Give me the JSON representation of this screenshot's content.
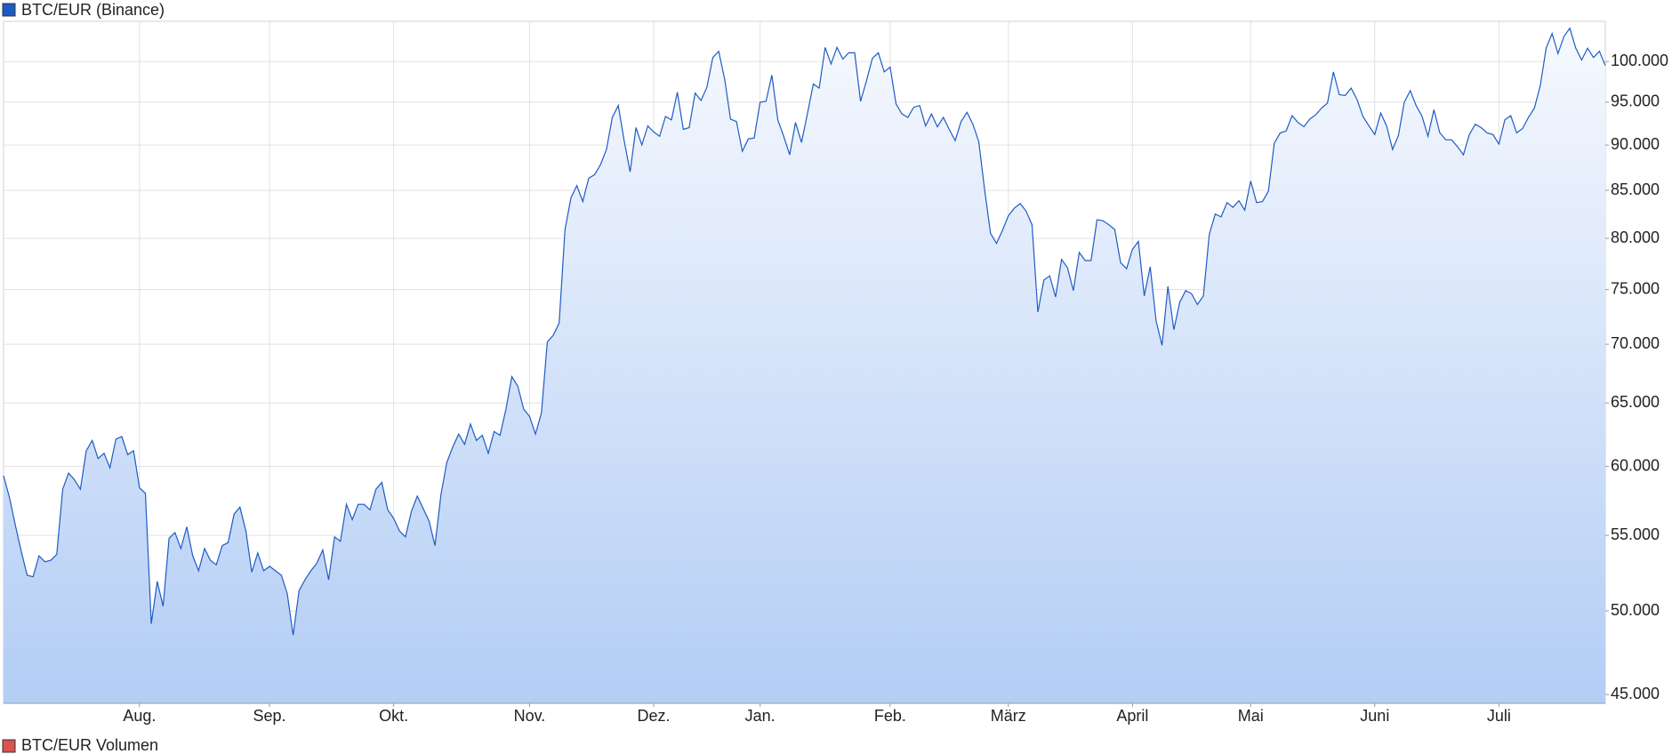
{
  "chart_data": {
    "type": "area",
    "log_scale": true,
    "grid": true,
    "series": [
      {
        "name": "BTC/EUR (Binance)",
        "color": "#1f5bc4",
        "values": [
          59300,
          57700,
          55700,
          53900,
          52300,
          52200,
          53600,
          53200,
          53300,
          53700,
          58300,
          59500,
          59000,
          58300,
          61200,
          62000,
          60600,
          61000,
          59900,
          62100,
          62300,
          60900,
          61200,
          58400,
          58000,
          49200,
          51900,
          50300,
          54800,
          55200,
          54100,
          55600,
          53600,
          52600,
          54100,
          53300,
          53000,
          54300,
          54500,
          56500,
          57000,
          55300,
          52500,
          53800,
          52600,
          52900,
          52600,
          52300,
          51100,
          48500,
          51300,
          52000,
          52600,
          53100,
          54000,
          52000,
          54900,
          54600,
          57200,
          56100,
          57200,
          57200,
          56800,
          58300,
          58800,
          56800,
          56200,
          55300,
          54900,
          56700,
          57800,
          56900,
          56000,
          54300,
          57900,
          60300,
          61500,
          62500,
          61700,
          63300,
          62000,
          62400,
          61000,
          62700,
          62400,
          64500,
          67200,
          66400,
          64500,
          63900,
          62500,
          64200,
          70200,
          70800,
          71900,
          80900,
          84200,
          85500,
          83800,
          86300,
          86700,
          87800,
          89500,
          93200,
          94600,
          90500,
          87000,
          92000,
          90000,
          92200,
          91500,
          91000,
          93300,
          92900,
          96200,
          91800,
          92000,
          96100,
          95200,
          96800,
          100500,
          101300,
          97800,
          93000,
          92700,
          89300,
          90700,
          90800,
          95000,
          95100,
          98300,
          92900,
          91000,
          88900,
          92600,
          90300,
          93600,
          97200,
          96700,
          101800,
          99700,
          101800,
          100300,
          101100,
          101100,
          95100,
          97600,
          100400,
          101100,
          98700,
          99300,
          94800,
          93600,
          93200,
          94400,
          94600,
          92200,
          93600,
          92100,
          93200,
          91800,
          90500,
          92700,
          93800,
          92400,
          90400,
          85000,
          80500,
          79500,
          80800,
          82300,
          83100,
          83600,
          82800,
          81400,
          72900,
          75900,
          76300,
          74300,
          77900,
          77100,
          74900,
          78600,
          77800,
          77800,
          81900,
          81800,
          81400,
          80900,
          77600,
          77000,
          78900,
          79700,
          74400,
          77200,
          72100,
          69900,
          75300,
          71300,
          73800,
          74900,
          74600,
          73600,
          74400,
          80400,
          82500,
          82200,
          83700,
          83200,
          83900,
          82900,
          86000,
          83700,
          83800,
          84900,
          90200,
          91400,
          91600,
          93400,
          92600,
          92100,
          93000,
          93500,
          94300,
          94900,
          98700,
          95900,
          95800,
          96700,
          95300,
          93300,
          92200,
          91200,
          93700,
          92200,
          89500,
          91100,
          95000,
          96400,
          94600,
          93300,
          91000,
          94100,
          91400,
          90600,
          90600,
          89800,
          88900,
          91200,
          92400,
          92000,
          91400,
          91200,
          90100,
          92900,
          93400,
          91400,
          91900,
          93200,
          94300,
          97000,
          101700,
          103600,
          101000,
          103200,
          104300,
          101700,
          100200,
          101700,
          100500,
          101300,
          99500
        ]
      }
    ],
    "volume_pane": {
      "name": "BTC/EUR Volumen",
      "color": "#d9534f"
    },
    "xlim": [
      0,
      271
    ],
    "xticks": [
      {
        "value": 23,
        "label": "Aug."
      },
      {
        "value": 45,
        "label": "Sep."
      },
      {
        "value": 66,
        "label": "Okt."
      },
      {
        "value": 89,
        "label": "Nov."
      },
      {
        "value": 110,
        "label": "Dez."
      },
      {
        "value": 128,
        "label": "Jan."
      },
      {
        "value": 150,
        "label": "Feb."
      },
      {
        "value": 170,
        "label": "März"
      },
      {
        "value": 191,
        "label": "April"
      },
      {
        "value": 211,
        "label": "Mai"
      },
      {
        "value": 232,
        "label": "Juni"
      },
      {
        "value": 253,
        "label": "Juli"
      }
    ],
    "ylim": [
      44500,
      105200
    ],
    "yticks": [
      {
        "value": 45000,
        "label": "45.000"
      },
      {
        "value": 50000,
        "label": "50.000"
      },
      {
        "value": 55000,
        "label": "55.000"
      },
      {
        "value": 60000,
        "label": "60.000"
      },
      {
        "value": 65000,
        "label": "65.000"
      },
      {
        "value": 70000,
        "label": "70.000"
      },
      {
        "value": 75000,
        "label": "75.000"
      },
      {
        "value": 80000,
        "label": "80.000"
      },
      {
        "value": 85000,
        "label": "85.000"
      },
      {
        "value": 90000,
        "label": "90.000"
      },
      {
        "value": 95000,
        "label": "95.000"
      },
      {
        "value": 100000,
        "label": "100.000"
      }
    ]
  }
}
